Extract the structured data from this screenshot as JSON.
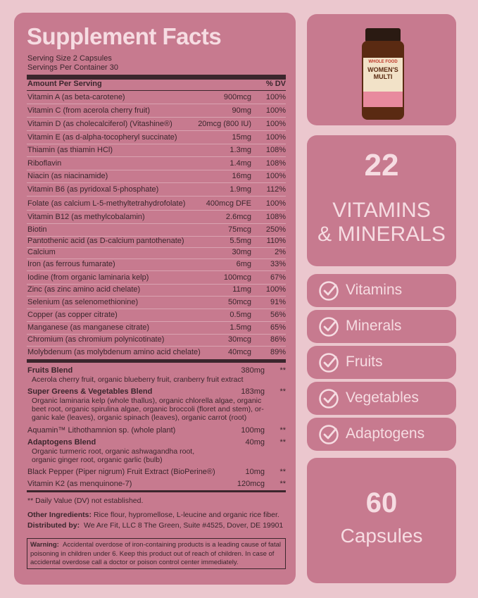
{
  "header": {
    "title": "Supplement Facts",
    "serving_size": "Serving Size 2 Capsules",
    "servings_per_container": "Servings Per Container 30"
  },
  "table": {
    "header": [
      "Amount Per Serving",
      "% DV"
    ],
    "rows": [
      [
        "Vitamin A (as beta-carotene)",
        "900mcg",
        "100%"
      ],
      [
        "Vitamin C (from acerola cherry fruit)",
        "90mg",
        "100%"
      ],
      [
        "Vitamin D (as cholecalciferol) (Vitashine®)",
        "20mcg (800 IU)",
        "100%"
      ],
      [
        "Vitamin E (as d-alpha-tocopheryl succinate)",
        "15mg",
        "100%"
      ],
      [
        "Thiamin (as thiamin HCl)",
        "1.3mg",
        "108%"
      ],
      [
        "Riboflavin",
        "1.4mg",
        "108%"
      ],
      [
        "Niacin (as niacinamide)",
        "16mg",
        "100%"
      ],
      [
        "Vitamin B6 (as pyridoxal 5-phosphate)",
        "1.9mg",
        "112%"
      ],
      [
        "Folate (as calcium L-5-methyltetrahydrofolate)",
        "400mcg DFE",
        "100%"
      ],
      [
        "Vitamin B12 (as methylcobalamin)",
        "2.6mcg",
        "108%"
      ],
      [
        "Biotin",
        "75mcg",
        "250%"
      ],
      [
        "Pantothenic acid (as D-calcium pantothenate)",
        "5.5mg",
        "110%"
      ],
      [
        "Calcium",
        "30mg",
        "2%"
      ],
      [
        "Iron (as ferrous fumarate)",
        "6mg",
        "33%"
      ],
      [
        "Iodine (from organic laminaria kelp)",
        "100mcg",
        "67%"
      ],
      [
        "Zinc (as zinc amino acid chelate)",
        "11mg",
        "100%"
      ],
      [
        "Selenium (as selenomethionine)",
        "50mcg",
        "91%"
      ],
      [
        "Copper (as copper citrate)",
        "0.5mg",
        "56%"
      ],
      [
        "Manganese (as manganese citrate)",
        "1.5mg",
        "65%"
      ],
      [
        "Chromium (as chromium polynicotinate)",
        "30mcg",
        "86%"
      ],
      [
        "Molybdenum (as molybdenum amino acid chelate)",
        "40mcg",
        "89%"
      ]
    ]
  },
  "blends": [
    {
      "name": "Fruits Blend",
      "amount": "380mg",
      "dv": "**",
      "description": [
        "Acerola cherry fruit, organic blueberry fruit, cranberry fruit extract"
      ]
    },
    {
      "name": "Super Greens & Vegetables Blend",
      "amount": "183mg",
      "dv": "**",
      "description": [
        "Organic laminaria kelp (whole thallus), organic chlorella algae, organic",
        "beet root, organic spirulina algae, organic broccoli (floret and stem), or-",
        "ganic kale (leaves), organic spinach (leaves), organic carrot (root)"
      ]
    },
    {
      "name": "Aquamin™ Lithothamnion sp. (whole plant)",
      "amount": "100mg",
      "dv": "**",
      "description": []
    },
    {
      "name": "Adaptogens Blend",
      "amount": "40mg",
      "dv": "**",
      "description": [
        "Organic turmeric root, organic ashwagandha root,",
        "organic ginger root, organic garlic (bulb)"
      ]
    },
    {
      "name": "Black Pepper (Piper nigrum) Fruit Extract (BioPerine®)",
      "amount": "10mg",
      "dv": "**",
      "description": []
    },
    {
      "name": "Vitamin K2 (as menquinone-7)",
      "amount": "120mcg",
      "dv": "**",
      "description": []
    }
  ],
  "footnote": "** Daily Value (DV) not established.",
  "other_ingredients": {
    "label": "Other Ingredients:",
    "text": "Rice flour, hypromellose, L-leucine and organic rice fiber."
  },
  "distributed_by": {
    "label": "Distributed by:",
    "text": "We Are Fit, LLC 8 The Green, Suite #4525, Dover, DE 19901"
  },
  "warning": {
    "label": "Warning:",
    "lines": [
      "Accidental overdose of iron-containing products is a leading cause of fatal",
      "poisoning in children under 6. Keep this product out of reach of children. In case of",
      "accidental overdose call a doctor or poison control center immediately."
    ]
  },
  "product": {
    "tagline": "WHOLE FOOD",
    "name": "WOMEN'S MULTI"
  },
  "badge": {
    "number": "22",
    "lines": [
      "VITAMINS",
      "& MINERALS"
    ]
  },
  "features": [
    "Vitamins",
    "Minerals",
    "Fruits",
    "Vegetables",
    "Adaptogens"
  ],
  "count": {
    "number": "60",
    "label": "Capsules"
  }
}
